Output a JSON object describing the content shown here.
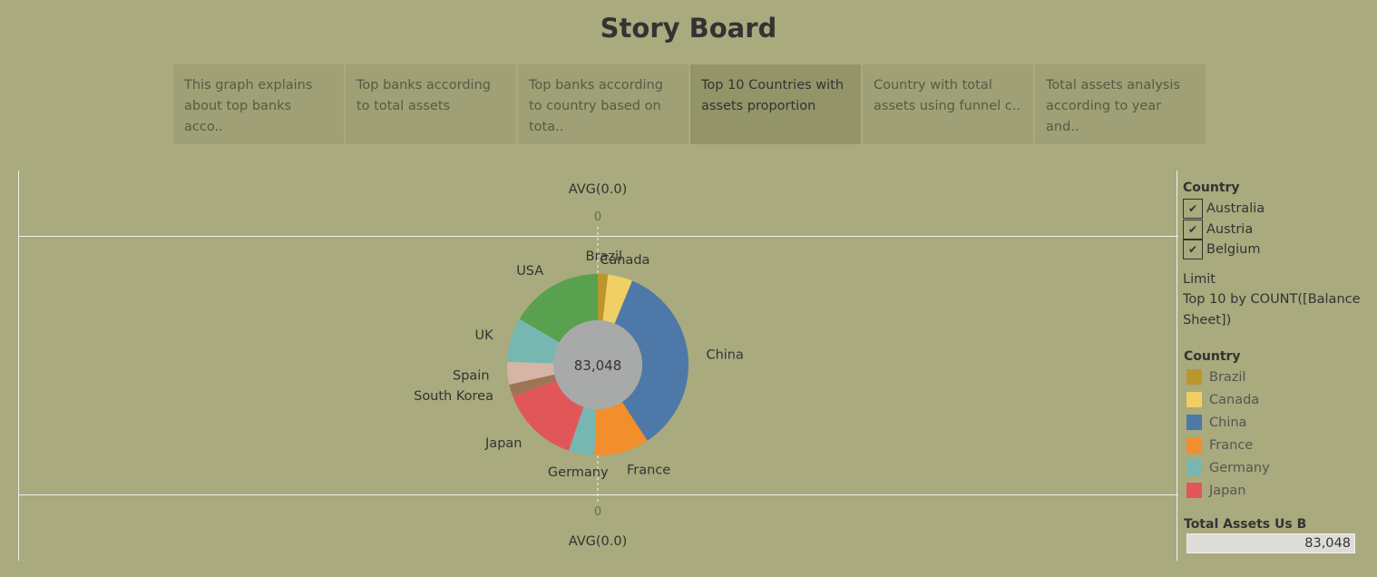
{
  "title": "Story Board",
  "story_tabs": [
    {
      "label": "This graph explains about top banks acco..",
      "active": false
    },
    {
      "label": "Top banks according to total assets",
      "active": false
    },
    {
      "label": "Top banks according to country based on tota..",
      "active": false
    },
    {
      "label": "Top 10 Countries with assets proportion",
      "active": true
    },
    {
      "label": "Country with total assets using funnel c..",
      "active": false
    },
    {
      "label": "Total assets analysis according to year and..",
      "active": false
    }
  ],
  "viz": {
    "top_axis_title": "AVG(0.0)",
    "top_axis_tick": "0",
    "bottom_axis_tick": "0",
    "bottom_axis_title": "AVG(0.0)"
  },
  "chart_data": {
    "type": "pie",
    "center_label": "83,048",
    "categories": [
      "Brazil",
      "Canada",
      "China",
      "France",
      "Germany",
      "Japan",
      "South Korea",
      "Spain",
      "UK",
      "USA"
    ],
    "values": [
      1.8,
      4.4,
      34.6,
      9.8,
      4.6,
      14.1,
      2.2,
      4.0,
      7.9,
      16.6
    ],
    "colors": [
      "#b9972a",
      "#f0cf65",
      "#4e78a8",
      "#f28e2b",
      "#76b7b2",
      "#e15759",
      "#9c7557",
      "#d7b5a6",
      "#76b7b2",
      "#59a14f"
    ]
  },
  "sidebar": {
    "filter_title": "Country",
    "filter_items": [
      "Australia",
      "Austria",
      "Belgium"
    ],
    "limit_label": "Limit",
    "limit_text": "Top 10 by COUNT([Balance Sheet])",
    "legend_title": "Country",
    "legend": [
      {
        "label": "Brazil",
        "color": "#b9972a"
      },
      {
        "label": "Canada",
        "color": "#f0cf65"
      },
      {
        "label": "China",
        "color": "#4e78a8"
      },
      {
        "label": "France",
        "color": "#f28e2b"
      },
      {
        "label": "Germany",
        "color": "#76b7b2"
      },
      {
        "label": "Japan",
        "color": "#e15759"
      }
    ],
    "total_title": "Total Assets Us B",
    "total_value": "83,048",
    "check_icon": "check-icon"
  }
}
